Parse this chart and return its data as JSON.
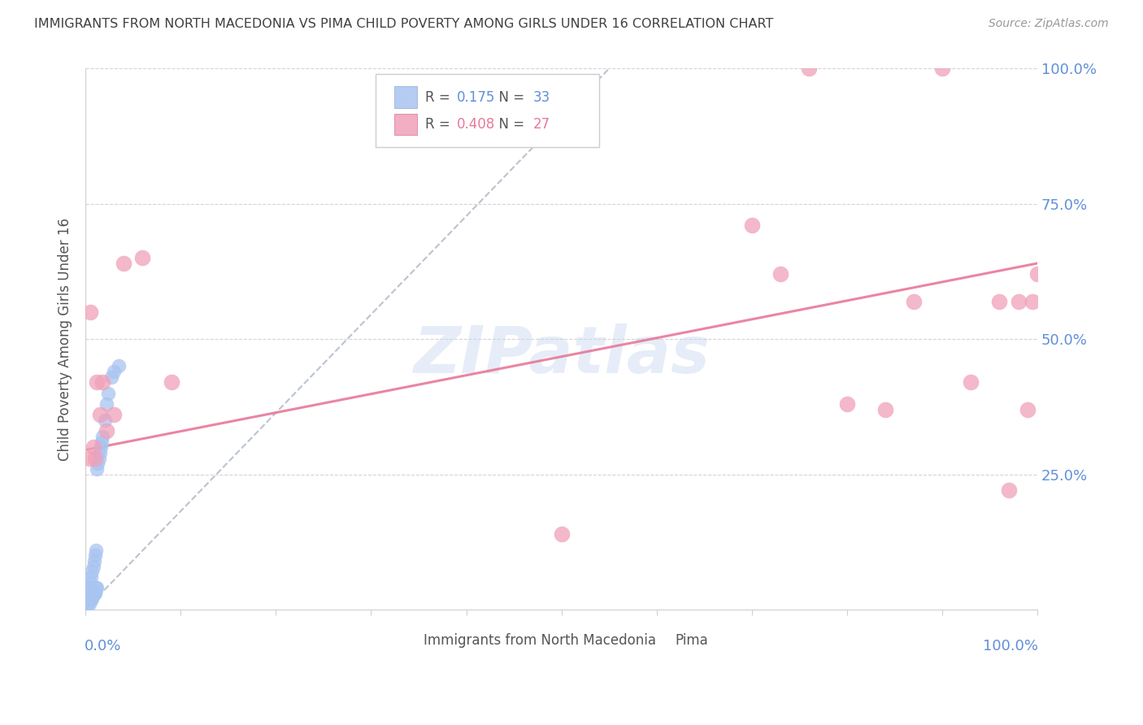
{
  "title": "IMMIGRANTS FROM NORTH MACEDONIA VS PIMA CHILD POVERTY AMONG GIRLS UNDER 16 CORRELATION CHART",
  "source": "Source: ZipAtlas.com",
  "ylabel": "Child Poverty Among Girls Under 16",
  "legend_blue_R": "0.175",
  "legend_blue_N": "33",
  "legend_pink_R": "0.408",
  "legend_pink_N": "27",
  "watermark": "ZIPatlas",
  "blue_color": "#a8c4f0",
  "pink_color": "#f0a0b8",
  "blue_line_color": "#a0b8e0",
  "pink_line_color": "#e87898",
  "axis_label_color": "#6090d8",
  "title_color": "#404040",
  "grid_color": "#d0d0d0",
  "blue_points_x": [
    0.002,
    0.003,
    0.003,
    0.004,
    0.004,
    0.005,
    0.005,
    0.006,
    0.006,
    0.007,
    0.007,
    0.008,
    0.008,
    0.009,
    0.009,
    0.01,
    0.01,
    0.011,
    0.011,
    0.012,
    0.012,
    0.013,
    0.014,
    0.015,
    0.016,
    0.017,
    0.018,
    0.02,
    0.022,
    0.024,
    0.027,
    0.03,
    0.035
  ],
  "blue_points_y": [
    0.01,
    0.02,
    0.03,
    0.01,
    0.04,
    0.02,
    0.05,
    0.02,
    0.06,
    0.02,
    0.07,
    0.03,
    0.08,
    0.03,
    0.09,
    0.03,
    0.1,
    0.04,
    0.11,
    0.04,
    0.26,
    0.27,
    0.28,
    0.29,
    0.3,
    0.31,
    0.32,
    0.35,
    0.38,
    0.4,
    0.43,
    0.44,
    0.45
  ],
  "pink_points_x": [
    0.004,
    0.005,
    0.008,
    0.01,
    0.012,
    0.015,
    0.018,
    0.022,
    0.03,
    0.04,
    0.06,
    0.09,
    0.5,
    0.7,
    0.73,
    0.76,
    0.8,
    0.84,
    0.87,
    0.9,
    0.93,
    0.96,
    0.97,
    0.98,
    0.99,
    0.995,
    1.0
  ],
  "pink_points_y": [
    0.28,
    0.55,
    0.3,
    0.28,
    0.42,
    0.36,
    0.42,
    0.33,
    0.36,
    0.64,
    0.65,
    0.42,
    0.14,
    0.71,
    0.62,
    1.0,
    0.38,
    0.37,
    0.57,
    1.0,
    0.42,
    0.57,
    0.22,
    0.57,
    0.37,
    0.57,
    0.62
  ],
  "blue_line_x0": 0.0,
  "blue_line_x1": 0.55,
  "blue_line_y0": 0.0,
  "blue_line_y1": 1.0,
  "pink_line_x0": 0.0,
  "pink_line_x1": 1.0,
  "pink_line_y0": 0.295,
  "pink_line_y1": 0.64,
  "xmin": 0.0,
  "xmax": 1.0,
  "ymin": 0.0,
  "ymax": 1.0
}
